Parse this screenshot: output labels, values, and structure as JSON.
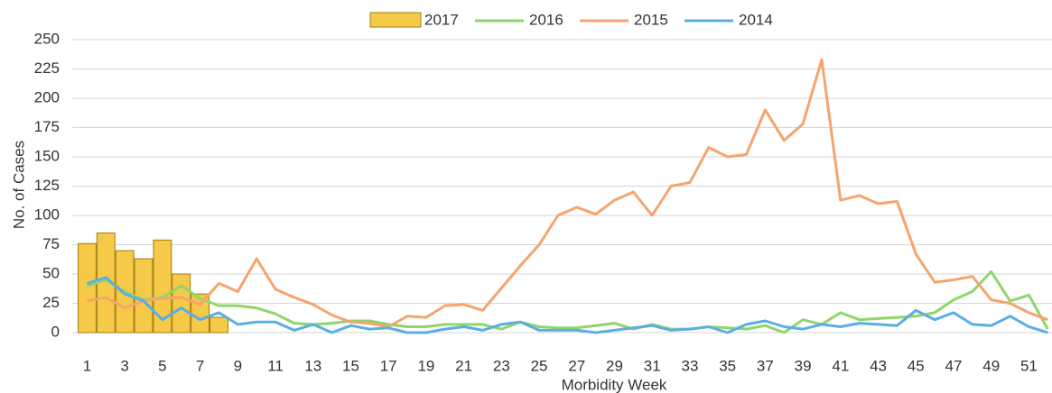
{
  "chart_data": {
    "type": "bar",
    "x_label": "Morbidity Week",
    "y_label": "No. of Cases",
    "categories": [
      1,
      null,
      3,
      null,
      5,
      null,
      7,
      null,
      9,
      null,
      11,
      null,
      13,
      null,
      15,
      null,
      17,
      null,
      19,
      null,
      21,
      null,
      23,
      null,
      25,
      null,
      27,
      null,
      29,
      null,
      31,
      null,
      33,
      null,
      35,
      null,
      37,
      null,
      39,
      null,
      41,
      null,
      43,
      null,
      45,
      null,
      47,
      null,
      49,
      null,
      51,
      null
    ],
    "series": [
      {
        "name": "2017",
        "type": "bar",
        "color": "#f7c948",
        "values": [
          76,
          85,
          70,
          63,
          79,
          50,
          33,
          13,
          null,
          null,
          null,
          null,
          null,
          null,
          null,
          null,
          null,
          null,
          null,
          null,
          null,
          null,
          null,
          null,
          null,
          null,
          null,
          null,
          null,
          null,
          null,
          null,
          null,
          null,
          null,
          null,
          null,
          null,
          null,
          null,
          null,
          null,
          null,
          null,
          null,
          null,
          null,
          null,
          null,
          null,
          null,
          null
        ]
      },
      {
        "name": "2016",
        "type": "line",
        "color": "#8fd66a",
        "values": [
          40,
          45,
          35,
          28,
          30,
          40,
          29,
          23,
          23,
          21,
          16,
          8,
          7,
          8,
          10,
          10,
          7,
          5,
          5,
          7,
          7,
          7,
          3,
          9,
          5,
          4,
          4,
          6,
          8,
          3,
          7,
          3,
          3,
          5,
          4,
          3,
          6,
          0,
          11,
          7,
          17,
          11,
          12,
          13,
          14,
          17,
          28,
          35,
          52,
          27,
          32,
          3
        ]
      },
      {
        "name": "2015",
        "type": "line",
        "color": "#f5a46e",
        "values": [
          27,
          30,
          21,
          27,
          29,
          30,
          24,
          42,
          35,
          63,
          37,
          30,
          24,
          15,
          9,
          8,
          5,
          14,
          13,
          23,
          24,
          19,
          38,
          57,
          75,
          100,
          107,
          101,
          113,
          120,
          100,
          125,
          128,
          158,
          150,
          152,
          190,
          164,
          178,
          233,
          113,
          117,
          110,
          112,
          67,
          43,
          45,
          48,
          28,
          25,
          17,
          11
        ]
      },
      {
        "name": "2014",
        "type": "line",
        "color": "#5aaee2",
        "values": [
          42,
          47,
          33,
          27,
          11,
          21,
          11,
          17,
          7,
          9,
          9,
          2,
          7,
          0,
          6,
          3,
          4,
          0,
          0,
          3,
          5,
          2,
          7,
          9,
          2,
          2,
          2,
          0,
          2,
          4,
          6,
          2,
          3,
          5,
          0,
          7,
          10,
          5,
          3,
          7,
          5,
          8,
          7,
          6,
          19,
          11,
          17,
          7,
          6,
          14,
          5,
          0
        ]
      }
    ],
    "ylim": [
      0,
      250
    ],
    "yticks": [
      0,
      25,
      50,
      75,
      100,
      125,
      150,
      175,
      200,
      225,
      250
    ],
    "grid": true,
    "legend": "top"
  }
}
